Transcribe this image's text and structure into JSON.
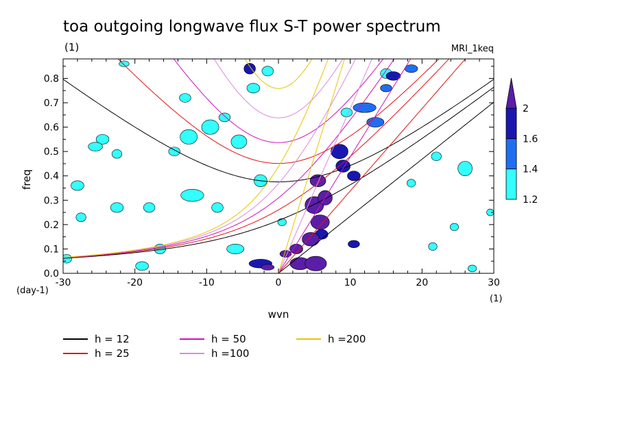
{
  "chart_data": {
    "type": "heatmap",
    "title": "toa outgoing longwave flux S-T power spectrum",
    "subtitle": "(1)",
    "model_label": "MRI_1keq",
    "xlabel": "wvn",
    "ylabel": "freq",
    "x_unit": "(1)",
    "y_unit": "(day-1)",
    "xlim": [
      -30,
      30
    ],
    "ylim": [
      0,
      0.88
    ],
    "x_ticks": [
      -30,
      -20,
      -10,
      0,
      10,
      20,
      30
    ],
    "x_tick_labels": [
      "-30",
      "-20",
      "-10",
      "0",
      "10",
      "20",
      "30"
    ],
    "y_ticks": [
      0,
      0.1,
      0.2,
      0.3,
      0.4,
      0.5,
      0.6,
      0.7,
      0.8
    ],
    "y_tick_labels": [
      "0.0",
      "0.1",
      "0.2",
      "0.3",
      "0.4",
      "0.5",
      "0.6",
      "0.7",
      "0.8"
    ],
    "colorbar": {
      "levels": [
        1.2,
        1.4,
        1.6,
        2
      ],
      "labels": [
        "1.2",
        "1.4",
        "1.6",
        "2"
      ],
      "colors": [
        "#33ffff",
        "#1f6ef2",
        "#1a17b0",
        "#5a1ea8"
      ]
    },
    "dispersion_curves": [
      {
        "name": "h = 12",
        "h": 12,
        "color": "#000000"
      },
      {
        "name": "h = 25",
        "h": 25,
        "color": "#e01010"
      },
      {
        "name": "h = 50",
        "h": 50,
        "color": "#cc11bb"
      },
      {
        "name": "h =100",
        "h": 100,
        "color": "#dd88dd"
      },
      {
        "name": "h =200",
        "h": 200,
        "color": "#e8c400"
      }
    ],
    "contour_blobs": [
      {
        "x": 1,
        "y": 0.08,
        "rx": 0.8,
        "ry": 0.014,
        "level": 2
      },
      {
        "x": 2.5,
        "y": 0.1,
        "rx": 0.9,
        "ry": 0.02,
        "level": 2
      },
      {
        "x": 3,
        "y": 0.04,
        "rx": 1.4,
        "ry": 0.025,
        "level": 2
      },
      {
        "x": 5.2,
        "y": 0.04,
        "rx": 1.5,
        "ry": 0.03,
        "level": 2
      },
      {
        "x": 4.5,
        "y": 0.14,
        "rx": 1.2,
        "ry": 0.028,
        "level": 2
      },
      {
        "x": 5.8,
        "y": 0.21,
        "rx": 1.3,
        "ry": 0.03,
        "level": 2
      },
      {
        "x": 5,
        "y": 0.28,
        "rx": 1.3,
        "ry": 0.035,
        "level": 2
      },
      {
        "x": 6.5,
        "y": 0.31,
        "rx": 1,
        "ry": 0.03,
        "level": 2
      },
      {
        "x": 5.5,
        "y": 0.38,
        "rx": 1.1,
        "ry": 0.025,
        "level": 2
      },
      {
        "x": 6,
        "y": 0.16,
        "rx": 0.9,
        "ry": 0.02,
        "level": 1.6
      },
      {
        "x": 8.5,
        "y": 0.5,
        "rx": 1.2,
        "ry": 0.03,
        "level": 1.6
      },
      {
        "x": 9,
        "y": 0.44,
        "rx": 1,
        "ry": 0.025,
        "level": 1.6
      },
      {
        "x": 10.5,
        "y": 0.4,
        "rx": 0.9,
        "ry": 0.02,
        "level": 1.6
      },
      {
        "x": 10.5,
        "y": 0.12,
        "rx": 0.8,
        "ry": 0.015,
        "level": 1.6
      },
      {
        "x": 12,
        "y": 0.68,
        "rx": 1.6,
        "ry": 0.02,
        "level": 1.4
      },
      {
        "x": 13.5,
        "y": 0.62,
        "rx": 1.2,
        "ry": 0.02,
        "level": 1.4
      },
      {
        "x": 16,
        "y": 0.81,
        "rx": 1,
        "ry": 0.018,
        "level": 1.6
      },
      {
        "x": 15,
        "y": 0.76,
        "rx": 0.8,
        "ry": 0.015,
        "level": 1.4
      },
      {
        "x": 18.5,
        "y": 0.84,
        "rx": 0.9,
        "ry": 0.016,
        "level": 1.4
      },
      {
        "x": -4,
        "y": 0.84,
        "rx": 0.8,
        "ry": 0.022,
        "level": 1.6
      },
      {
        "x": -2.5,
        "y": 0.04,
        "rx": 1.6,
        "ry": 0.018,
        "level": 1.6
      },
      {
        "x": -1.5,
        "y": 0.025,
        "rx": 0.9,
        "ry": 0.012,
        "level": 2
      },
      {
        "x": -12.5,
        "y": 0.56,
        "rx": 1.2,
        "ry": 0.03,
        "level": 1.2
      },
      {
        "x": -12,
        "y": 0.32,
        "rx": 1.6,
        "ry": 0.025,
        "level": 1.2
      },
      {
        "x": -13,
        "y": 0.72,
        "rx": 0.8,
        "ry": 0.018,
        "level": 1.2
      },
      {
        "x": -24.5,
        "y": 0.55,
        "rx": 0.9,
        "ry": 0.02,
        "level": 1.2
      },
      {
        "x": -25.5,
        "y": 0.52,
        "rx": 1,
        "ry": 0.018,
        "level": 1.2
      },
      {
        "x": -9.5,
        "y": 0.6,
        "rx": 1.2,
        "ry": 0.03,
        "level": 1.2
      },
      {
        "x": -5.5,
        "y": 0.54,
        "rx": 1.1,
        "ry": 0.028,
        "level": 1.2
      },
      {
        "x": -3.5,
        "y": 0.76,
        "rx": 0.9,
        "ry": 0.02,
        "level": 1.2
      },
      {
        "x": -28,
        "y": 0.36,
        "rx": 0.9,
        "ry": 0.02,
        "level": 1.2
      },
      {
        "x": -8.5,
        "y": 0.27,
        "rx": 0.8,
        "ry": 0.02,
        "level": 1.2
      },
      {
        "x": -2.5,
        "y": 0.38,
        "rx": 0.9,
        "ry": 0.025,
        "level": 1.2
      },
      {
        "x": -6,
        "y": 0.1,
        "rx": 1.2,
        "ry": 0.02,
        "level": 1.2
      },
      {
        "x": -16.5,
        "y": 0.1,
        "rx": 0.8,
        "ry": 0.02,
        "level": 1.2
      },
      {
        "x": 0.5,
        "y": 0.21,
        "rx": 0.6,
        "ry": 0.015,
        "level": 1.2
      },
      {
        "x": -1.5,
        "y": 0.83,
        "rx": 0.8,
        "ry": 0.02,
        "level": 1.2
      },
      {
        "x": 9.5,
        "y": 0.66,
        "rx": 0.8,
        "ry": 0.018,
        "level": 1.2
      },
      {
        "x": 26,
        "y": 0.43,
        "rx": 1,
        "ry": 0.03,
        "level": 1.2
      },
      {
        "x": 22,
        "y": 0.48,
        "rx": 0.7,
        "ry": 0.018,
        "level": 1.2
      },
      {
        "x": 18.5,
        "y": 0.37,
        "rx": 0.6,
        "ry": 0.016,
        "level": 1.2
      },
      {
        "x": 29.5,
        "y": 0.25,
        "rx": 0.5,
        "ry": 0.014,
        "level": 1.2
      },
      {
        "x": 27,
        "y": 0.02,
        "rx": 0.6,
        "ry": 0.014,
        "level": 1.2
      },
      {
        "x": 21.5,
        "y": 0.11,
        "rx": 0.6,
        "ry": 0.016,
        "level": 1.2
      },
      {
        "x": 24.5,
        "y": 0.19,
        "rx": 0.6,
        "ry": 0.015,
        "level": 1.2
      },
      {
        "x": 15,
        "y": 0.82,
        "rx": 0.8,
        "ry": 0.02,
        "level": 1.2
      },
      {
        "x": -21.5,
        "y": 0.86,
        "rx": 0.7,
        "ry": 0.012,
        "level": 1.2
      },
      {
        "x": -19,
        "y": 0.03,
        "rx": 0.9,
        "ry": 0.018,
        "level": 1.2
      },
      {
        "x": -18,
        "y": 0.27,
        "rx": 0.8,
        "ry": 0.02,
        "level": 1.2
      },
      {
        "x": -22.5,
        "y": 0.27,
        "rx": 0.9,
        "ry": 0.02,
        "level": 1.2
      },
      {
        "x": -29.5,
        "y": 0.06,
        "rx": 0.7,
        "ry": 0.018,
        "level": 1.2
      },
      {
        "x": -27.5,
        "y": 0.23,
        "rx": 0.7,
        "ry": 0.018,
        "level": 1.2
      },
      {
        "x": -22.5,
        "y": 0.49,
        "rx": 0.7,
        "ry": 0.018,
        "level": 1.2
      },
      {
        "x": -14.5,
        "y": 0.5,
        "rx": 0.8,
        "ry": 0.018,
        "level": 1.2
      },
      {
        "x": -7.5,
        "y": 0.64,
        "rx": 0.8,
        "ry": 0.018,
        "level": 1.2
      }
    ]
  }
}
